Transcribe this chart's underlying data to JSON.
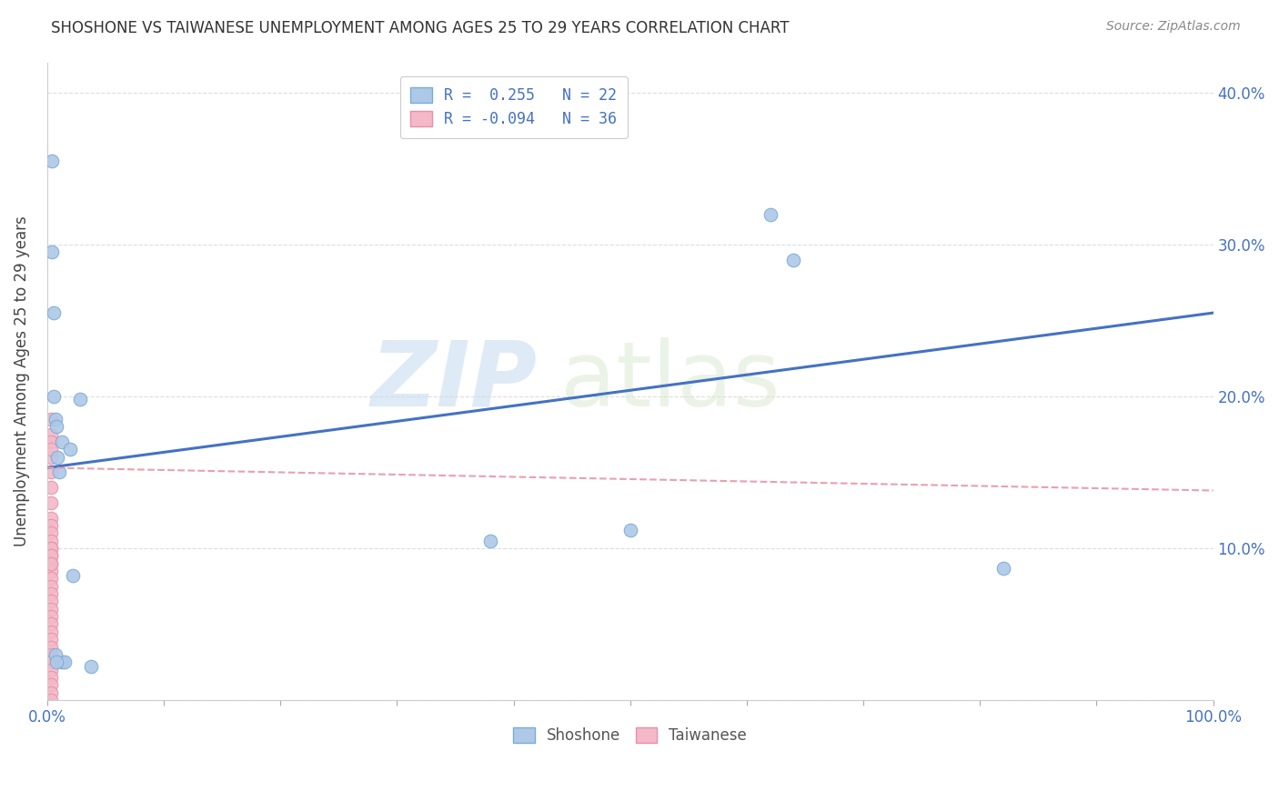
{
  "title": "SHOSHONE VS TAIWANESE UNEMPLOYMENT AMONG AGES 25 TO 29 YEARS CORRELATION CHART",
  "source": "Source: ZipAtlas.com",
  "ylabel": "Unemployment Among Ages 25 to 29 years",
  "xlim": [
    0,
    1.0
  ],
  "ylim": [
    0,
    0.42
  ],
  "xticks": [
    0.0,
    0.1,
    0.2,
    0.3,
    0.4,
    0.5,
    0.6,
    0.7,
    0.8,
    0.9,
    1.0
  ],
  "xticklabels": [
    "0.0%",
    "",
    "",
    "",
    "",
    "",
    "",
    "",
    "",
    "",
    "100.0%"
  ],
  "yticks": [
    0.0,
    0.1,
    0.2,
    0.3,
    0.4
  ],
  "yticklabels_right": [
    "",
    "10.0%",
    "20.0%",
    "30.0%",
    "40.0%"
  ],
  "shoshone_color": "#aec8e8",
  "shoshone_edge_color": "#7aacd4",
  "taiwanese_color": "#f4b8c8",
  "taiwanese_edge_color": "#e890a8",
  "trend_shoshone_color": "#4472c4",
  "trend_taiwanese_color": "#e8a0b0",
  "legend_shoshone_label": "R =  0.255   N = 22",
  "legend_taiwanese_label": "R = -0.094   N = 36",
  "shoshone_legend_color": "#aec8e8",
  "taiwanese_legend_color": "#f4b8c8",
  "shoshone_x": [
    0.004,
    0.004,
    0.006,
    0.006,
    0.007,
    0.008,
    0.009,
    0.01,
    0.013,
    0.013,
    0.015,
    0.02,
    0.022,
    0.028,
    0.038,
    0.38,
    0.5,
    0.62,
    0.64,
    0.82,
    0.007,
    0.008
  ],
  "shoshone_y": [
    0.355,
    0.295,
    0.255,
    0.2,
    0.185,
    0.18,
    0.16,
    0.15,
    0.17,
    0.025,
    0.025,
    0.165,
    0.082,
    0.198,
    0.022,
    0.105,
    0.112,
    0.32,
    0.29,
    0.087,
    0.03,
    0.025
  ],
  "taiwanese_x": [
    0.003,
    0.003,
    0.003,
    0.003,
    0.003,
    0.003,
    0.003,
    0.003,
    0.003,
    0.003,
    0.003,
    0.003,
    0.003,
    0.003,
    0.003,
    0.003,
    0.003,
    0.003,
    0.003,
    0.003,
    0.003,
    0.003,
    0.003,
    0.003,
    0.003,
    0.003,
    0.003,
    0.003,
    0.003,
    0.003,
    0.003,
    0.003,
    0.003,
    0.003,
    0.003,
    0.003
  ],
  "taiwanese_y": [
    0.16,
    0.15,
    0.14,
    0.13,
    0.12,
    0.115,
    0.11,
    0.105,
    0.1,
    0.095,
    0.09,
    0.085,
    0.08,
    0.075,
    0.07,
    0.065,
    0.06,
    0.055,
    0.05,
    0.045,
    0.04,
    0.035,
    0.03,
    0.025,
    0.02,
    0.015,
    0.01,
    0.005,
    0.175,
    0.17,
    0.165,
    0.185,
    0.1,
    0.095,
    0.09,
    0.0
  ],
  "shoshone_trend_x0": 0.0,
  "shoshone_trend_y0": 0.153,
  "shoshone_trend_x1": 1.0,
  "shoshone_trend_y1": 0.255,
  "taiwanese_trend_x0": 0.0,
  "taiwanese_trend_y0": 0.153,
  "taiwanese_trend_x1": 1.0,
  "taiwanese_trend_y1": 0.138,
  "watermark_line1": "ZIP",
  "watermark_line2": "atlas",
  "grid_color": "#dddddd",
  "background_color": "#ffffff",
  "marker_size": 110
}
